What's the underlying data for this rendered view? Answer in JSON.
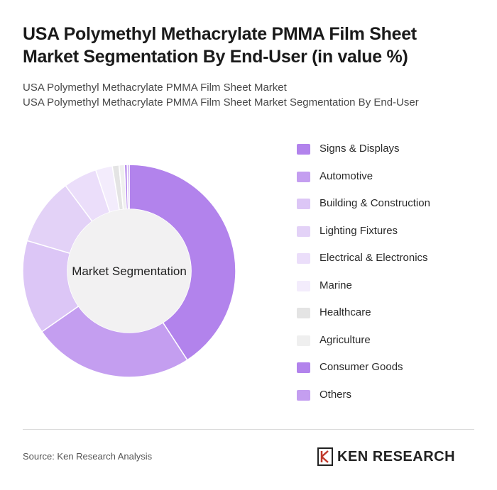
{
  "header": {
    "title": "USA Polymethyl Methacrylate PMMA Film Sheet Market Segmentation By End-User (in value %)",
    "subtitle_line1": "USA Polymethyl Methacrylate PMMA Film Sheet Market",
    "subtitle_line2": "USA Polymethyl Methacrylate PMMA Film Sheet Market Segmentation By End-User"
  },
  "chart_data": {
    "type": "pie",
    "variant": "donut",
    "center_label": "Market Segmentation",
    "categories": [
      "Signs & Displays",
      "Automotive",
      "Building & Construction",
      "Lighting Fixtures",
      "Electrical & Electronics",
      "Marine",
      "Healthcare",
      "Agriculture",
      "Consumer Goods",
      "Others"
    ],
    "values": [
      40,
      24,
      14,
      10,
      5,
      2.5,
      1,
      0.8,
      0.4,
      0.3
    ],
    "colors": [
      "#b283ec",
      "#c49ef0",
      "#dcc6f6",
      "#e3d2f7",
      "#ebdefa",
      "#f3ecfc",
      "#e4e4e4",
      "#efefef",
      "#b283ec",
      "#c49ef0"
    ],
    "legend_position": "right"
  },
  "footer": {
    "source": "Source: Ken Research Analysis",
    "brand": "KEN RESEARCH"
  }
}
